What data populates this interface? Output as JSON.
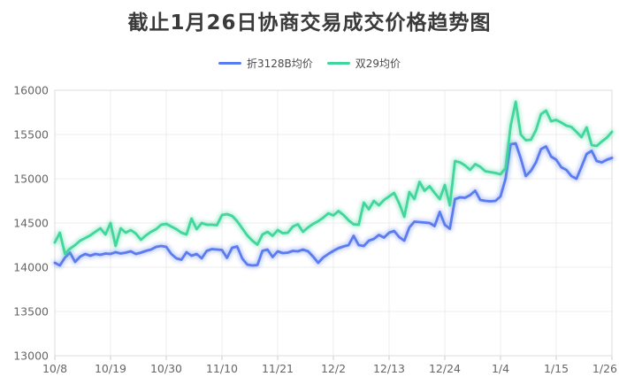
{
  "title": "截止1月26日协商交易成交价格趋势图",
  "legend": {
    "items": [
      {
        "label": "折3128B均价",
        "color": "#5b7cf0"
      },
      {
        "label": "双29均价",
        "color": "#41d69b"
      }
    ]
  },
  "colors": {
    "series1": "#5b7cf0",
    "series2": "#41d69b",
    "grid_line": "#ececec",
    "plot_border": "#dddddd",
    "tick_mark": "#cccccc",
    "axis_text": "#666666",
    "title_text": "#3a3a3a",
    "background": "#ffffff"
  },
  "chart_data": {
    "type": "line",
    "title": "截止1月26日协商交易成交价格趋势图",
    "xlabel": "",
    "ylabel": "",
    "ylim": [
      13000,
      16000
    ],
    "y_ticks": [
      13000,
      13500,
      14000,
      14500,
      15000,
      15500,
      16000
    ],
    "x_tick_labels": [
      "10/8",
      "10/19",
      "10/30",
      "11/10",
      "11/21",
      "12/2",
      "12/13",
      "12/24",
      "1/4",
      "1/15",
      "1/26"
    ],
    "x_tick_every": 11,
    "grid": true,
    "legend_position": "top",
    "series": [
      {
        "name": "折3128B均价",
        "color": "#5b7cf0",
        "values": [
          14050,
          14020,
          14110,
          14165,
          14060,
          14120,
          14150,
          14130,
          14150,
          14140,
          14155,
          14150,
          14170,
          14155,
          14165,
          14180,
          14150,
          14165,
          14185,
          14200,
          14230,
          14240,
          14230,
          14150,
          14100,
          14085,
          14170,
          14130,
          14150,
          14100,
          14185,
          14205,
          14200,
          14195,
          14105,
          14220,
          14235,
          14100,
          14030,
          14020,
          14025,
          14185,
          14200,
          14115,
          14180,
          14160,
          14165,
          14185,
          14180,
          14200,
          14180,
          14120,
          14050,
          14110,
          14150,
          14185,
          14215,
          14235,
          14250,
          14355,
          14250,
          14240,
          14300,
          14320,
          14365,
          14335,
          14390,
          14410,
          14340,
          14300,
          14450,
          14515,
          14510,
          14505,
          14500,
          14465,
          14625,
          14480,
          14435,
          14770,
          14790,
          14785,
          14815,
          14865,
          14760,
          14750,
          14745,
          14750,
          14800,
          15000,
          15390,
          15400,
          15230,
          15030,
          15090,
          15185,
          15335,
          15365,
          15250,
          15215,
          15130,
          15100,
          15030,
          15000,
          15135,
          15280,
          15315,
          15200,
          15185,
          15215,
          15235
        ]
      },
      {
        "name": "双29均价",
        "color": "#41d69b",
        "values": [
          14280,
          14390,
          14150,
          14210,
          14250,
          14300,
          14330,
          14360,
          14400,
          14440,
          14370,
          14500,
          14240,
          14440,
          14390,
          14420,
          14380,
          14310,
          14360,
          14400,
          14430,
          14480,
          14490,
          14460,
          14430,
          14390,
          14370,
          14550,
          14430,
          14500,
          14480,
          14480,
          14475,
          14590,
          14600,
          14580,
          14520,
          14440,
          14360,
          14300,
          14255,
          14370,
          14400,
          14355,
          14420,
          14385,
          14390,
          14460,
          14485,
          14400,
          14450,
          14490,
          14520,
          14560,
          14610,
          14585,
          14635,
          14590,
          14530,
          14485,
          14480,
          14730,
          14655,
          14750,
          14700,
          14760,
          14800,
          14840,
          14720,
          14570,
          14850,
          14770,
          14965,
          14865,
          14915,
          14840,
          14770,
          14930,
          14700,
          15200,
          15185,
          15150,
          15100,
          15165,
          15135,
          15085,
          15075,
          15065,
          15050,
          15120,
          15600,
          15870,
          15500,
          15435,
          15440,
          15550,
          15730,
          15770,
          15650,
          15665,
          15635,
          15600,
          15585,
          15530,
          15470,
          15580,
          15380,
          15370,
          15420,
          15465,
          15530
        ]
      }
    ]
  }
}
